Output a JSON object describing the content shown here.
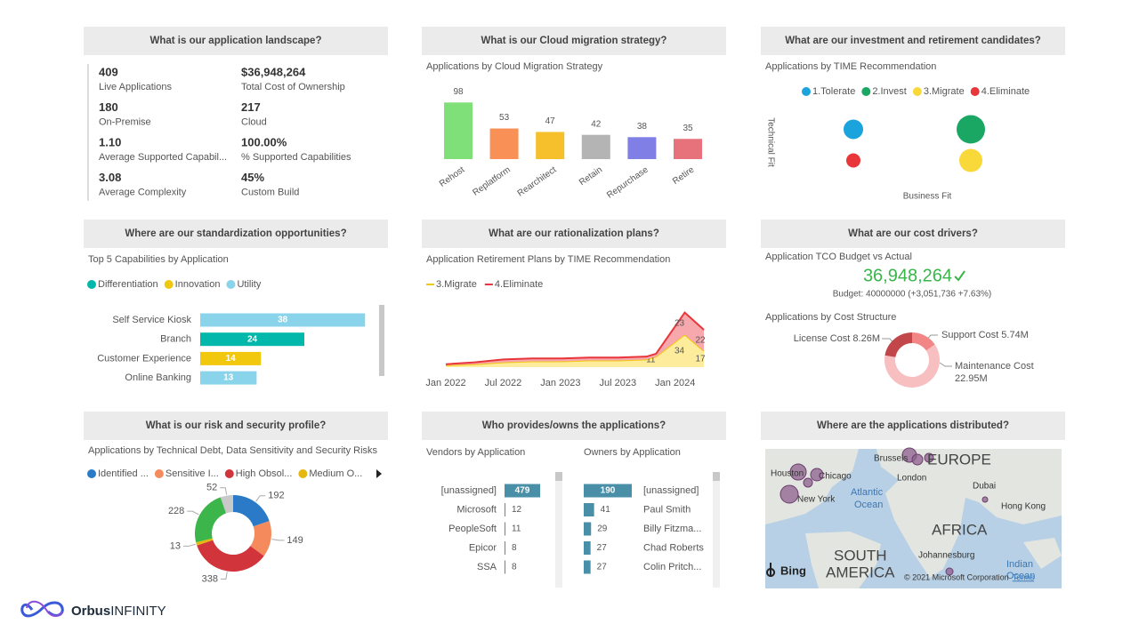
{
  "landscape": {
    "heading": "What is our application landscape?",
    "kpis": [
      {
        "value": "409",
        "label": "Live Applications"
      },
      {
        "value": "$36,948,264",
        "label": "Total Cost of Ownership"
      },
      {
        "value": "180",
        "label": "On-Premise"
      },
      {
        "value": "217",
        "label": "Cloud"
      },
      {
        "value": "1.10",
        "label": "Average Supported Capabil..."
      },
      {
        "value": "100.00%",
        "label": "% Supported Capabilities"
      },
      {
        "value": "3.08",
        "label": "Average Complexity"
      },
      {
        "value": "45%",
        "label": "Custom Build"
      }
    ]
  },
  "cloud": {
    "heading": "What is our Cloud migration strategy?",
    "chart_data": {
      "type": "bar",
      "title": "Applications by Cloud Migration Strategy",
      "categories": [
        "Rehost",
        "Replatform",
        "Rearchitect",
        "Retain",
        "Repurchase",
        "Retire"
      ],
      "values": [
        98,
        53,
        47,
        42,
        38,
        35
      ],
      "colors": [
        "#7fe07a",
        "#f99157",
        "#f6c02c",
        "#b4b4b4",
        "#7f7fe6",
        "#e7727b"
      ],
      "ylim": [
        0,
        100
      ]
    }
  },
  "investment": {
    "heading": "What are our investment and retirement candidates?",
    "chart_data": {
      "type": "scatter",
      "title": "Applications by TIME Recommendation",
      "x_label": "Business Fit",
      "y_label": "Technical Fit",
      "xlim": [
        0.5,
        2.75
      ],
      "ylim": [
        0.5,
        2.5
      ],
      "series": [
        {
          "name": "1.Tolerate",
          "color": "#1aa3dc",
          "x": [
            1
          ],
          "values": [
            2
          ],
          "sizes": [
            121
          ]
        },
        {
          "name": "2.Invest",
          "color": "#1aa764",
          "x": [
            2
          ],
          "values": [
            2
          ],
          "sizes": [
            256
          ]
        },
        {
          "name": "3.Migrate",
          "color": "#f9d83a",
          "x": [
            2
          ],
          "values": [
            1
          ],
          "sizes": [
            169
          ]
        },
        {
          "name": "4.Eliminate",
          "color": "#e8363a",
          "x": [
            1
          ],
          "values": [
            1
          ],
          "sizes": [
            64
          ]
        }
      ]
    }
  },
  "standardization": {
    "heading": "Where are our standardization opportunities?",
    "chart_data": {
      "type": "hbar",
      "title": "Top 5 Capabilities by Application",
      "categories": [
        "Self Service Kiosk",
        "Branch",
        "Customer Experience",
        "Online Banking"
      ],
      "xlim": [
        0,
        40
      ],
      "series": [
        {
          "name": "Differentiation",
          "color": "#01b8aa",
          "values": [
            null,
            24,
            null,
            null
          ]
        },
        {
          "name": "Innovation",
          "color": "#f2c80f",
          "values": [
            null,
            null,
            14,
            null
          ]
        },
        {
          "name": "Utility",
          "color": "#8ad4eb",
          "values": [
            38,
            null,
            null,
            13
          ]
        }
      ]
    }
  },
  "rationalization": {
    "heading": "What are our rationalization plans?",
    "chart_data": {
      "type": "stacked_area",
      "title": "Application Retirement Plans by TIME Recommendation",
      "x": [
        "Jan 2022",
        "Apr 2022",
        "Jul 2022",
        "Oct 2022",
        "Jan 2023",
        "Apr 2023",
        "Jul 2023",
        "Oct 2023",
        "Nov 2023",
        "Feb 2024",
        "Apr 2024"
      ],
      "xlim": [
        "Jan 2022",
        "Apr 2024"
      ],
      "xticks": [
        "Jan 2022",
        "Jul 2022",
        "Jan 2023",
        "Jul 2023",
        "Jan 2024"
      ],
      "ylim": [
        0,
        65
      ],
      "series": [
        {
          "name": "3.Migrate",
          "color": "#f2c80f",
          "fill": "#fcec9c",
          "values": [
            2,
            3,
            5,
            6,
            6,
            7,
            7,
            8,
            11,
            34,
            17
          ],
          "value_labels": [
            null,
            null,
            null,
            null,
            null,
            null,
            null,
            null,
            "11",
            "34",
            "17"
          ]
        },
        {
          "name": "4.Eliminate",
          "color": "#e8363a",
          "fill": "#f7a8ad",
          "values": [
            1,
            2,
            3,
            3,
            3,
            3,
            3,
            3,
            3,
            23,
            22
          ],
          "value_labels": [
            null,
            null,
            null,
            null,
            null,
            null,
            null,
            null,
            null,
            "23",
            "22"
          ]
        }
      ]
    }
  },
  "cost": {
    "heading": "What are our cost drivers?",
    "kpi": {
      "title": "Application TCO Budget vs Actual",
      "value": "36,948,264",
      "status": "Budget: 40000000 (+3,051,736 +7.63%)"
    },
    "chart_data": {
      "type": "donut",
      "title": "Applications by Cost Structure",
      "categories": [
        "License Cost",
        "Support Cost",
        "Maintenance Cost"
      ],
      "values": [
        8.26,
        5.74,
        22.95
      ],
      "value_labels": [
        "8.26M",
        "5.74M",
        "22.95M"
      ],
      "colors": [
        "#c2474b",
        "#f28585",
        "#f8bfc0"
      ]
    }
  },
  "risk": {
    "heading": "What is our risk and security profile?",
    "chart_data": {
      "type": "donut",
      "title": "Applications by Technical Debt, Data Sensitivity and Security Risks",
      "categories": [
        "Identified ...",
        "Sensitive I...",
        "High Obsol...",
        "Medium O...",
        null,
        null
      ],
      "values": [
        192,
        149,
        338,
        13,
        228,
        52
      ],
      "colors": [
        "#2a7ac7",
        "#f58a5c",
        "#d1343a",
        "#e6b711",
        "#3cb54a",
        "#c9c9c9"
      ]
    }
  },
  "owners": {
    "heading": "Who provides/owns the applications?",
    "chart_data": [
      {
        "type": "hbar",
        "title": "Vendors by Application",
        "categories": [
          "[unassigned]",
          "Microsoft",
          "PeopleSoft",
          "Epicor",
          "SSA"
        ],
        "values": [
          479,
          12,
          11,
          8,
          8
        ],
        "color": "#4a8fa8",
        "xlim": [
          0,
          479
        ]
      },
      {
        "type": "hbar",
        "title": "Owners by Application",
        "categories": [
          "[unassigned]",
          "Paul Smith",
          "Billy Fitzma...",
          "Chad Roberts",
          "Colin Pritch..."
        ],
        "values": [
          190,
          41,
          29,
          27,
          27
        ],
        "color": "#4a8fa8",
        "xlim": [
          0,
          190
        ]
      }
    ]
  },
  "distribution": {
    "heading": "Where are the applications distributed?",
    "map": {
      "places": [
        "Houston",
        "Chicago",
        "New York",
        "Atlantic",
        "Ocean",
        "Brussels",
        "EUROPE",
        "London",
        "Dubai",
        "Hong Kong",
        "AFRICA",
        "SOUTH",
        "AMERICA",
        "Johannesburg",
        "Indian",
        "Ocean"
      ],
      "provider": "Bing",
      "credit": "© 2021 Microsoft Corporation",
      "terms": "Terms"
    }
  },
  "brand": {
    "bold": "Orbus",
    "light": "INFINITY"
  }
}
